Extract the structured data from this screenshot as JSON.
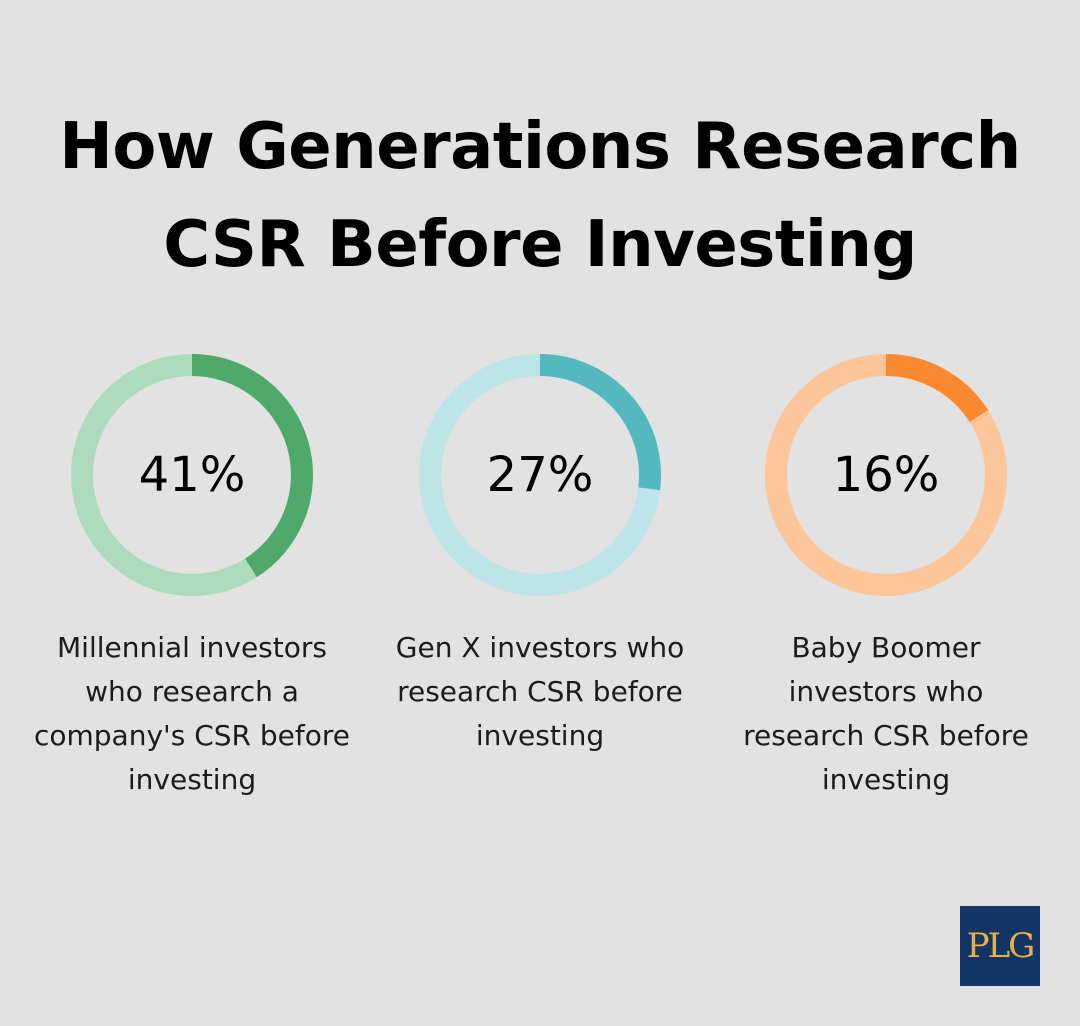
{
  "title_lines": [
    "How Generations Research",
    "CSR Before Investing"
  ],
  "chart_data": {
    "type": "pie",
    "items": [
      {
        "label": "41%",
        "value": 41,
        "caption": "Millennial investors who research a company's CSR before investing",
        "color": "#4ea96a",
        "track_color": "#afdbbd"
      },
      {
        "label": "27%",
        "value": 27,
        "caption": "Gen X investors who research CSR before investing",
        "color": "#55b8bf",
        "track_color": "#bde4e6"
      },
      {
        "label": "16%",
        "value": 16,
        "caption": "Baby Boomer investors who research CSR before investing",
        "color": "#f98a32",
        "track_color": "#fcc69a"
      }
    ]
  },
  "logo": {
    "text": "PLG",
    "background": "#123566",
    "text_color": "#e8b04a"
  }
}
